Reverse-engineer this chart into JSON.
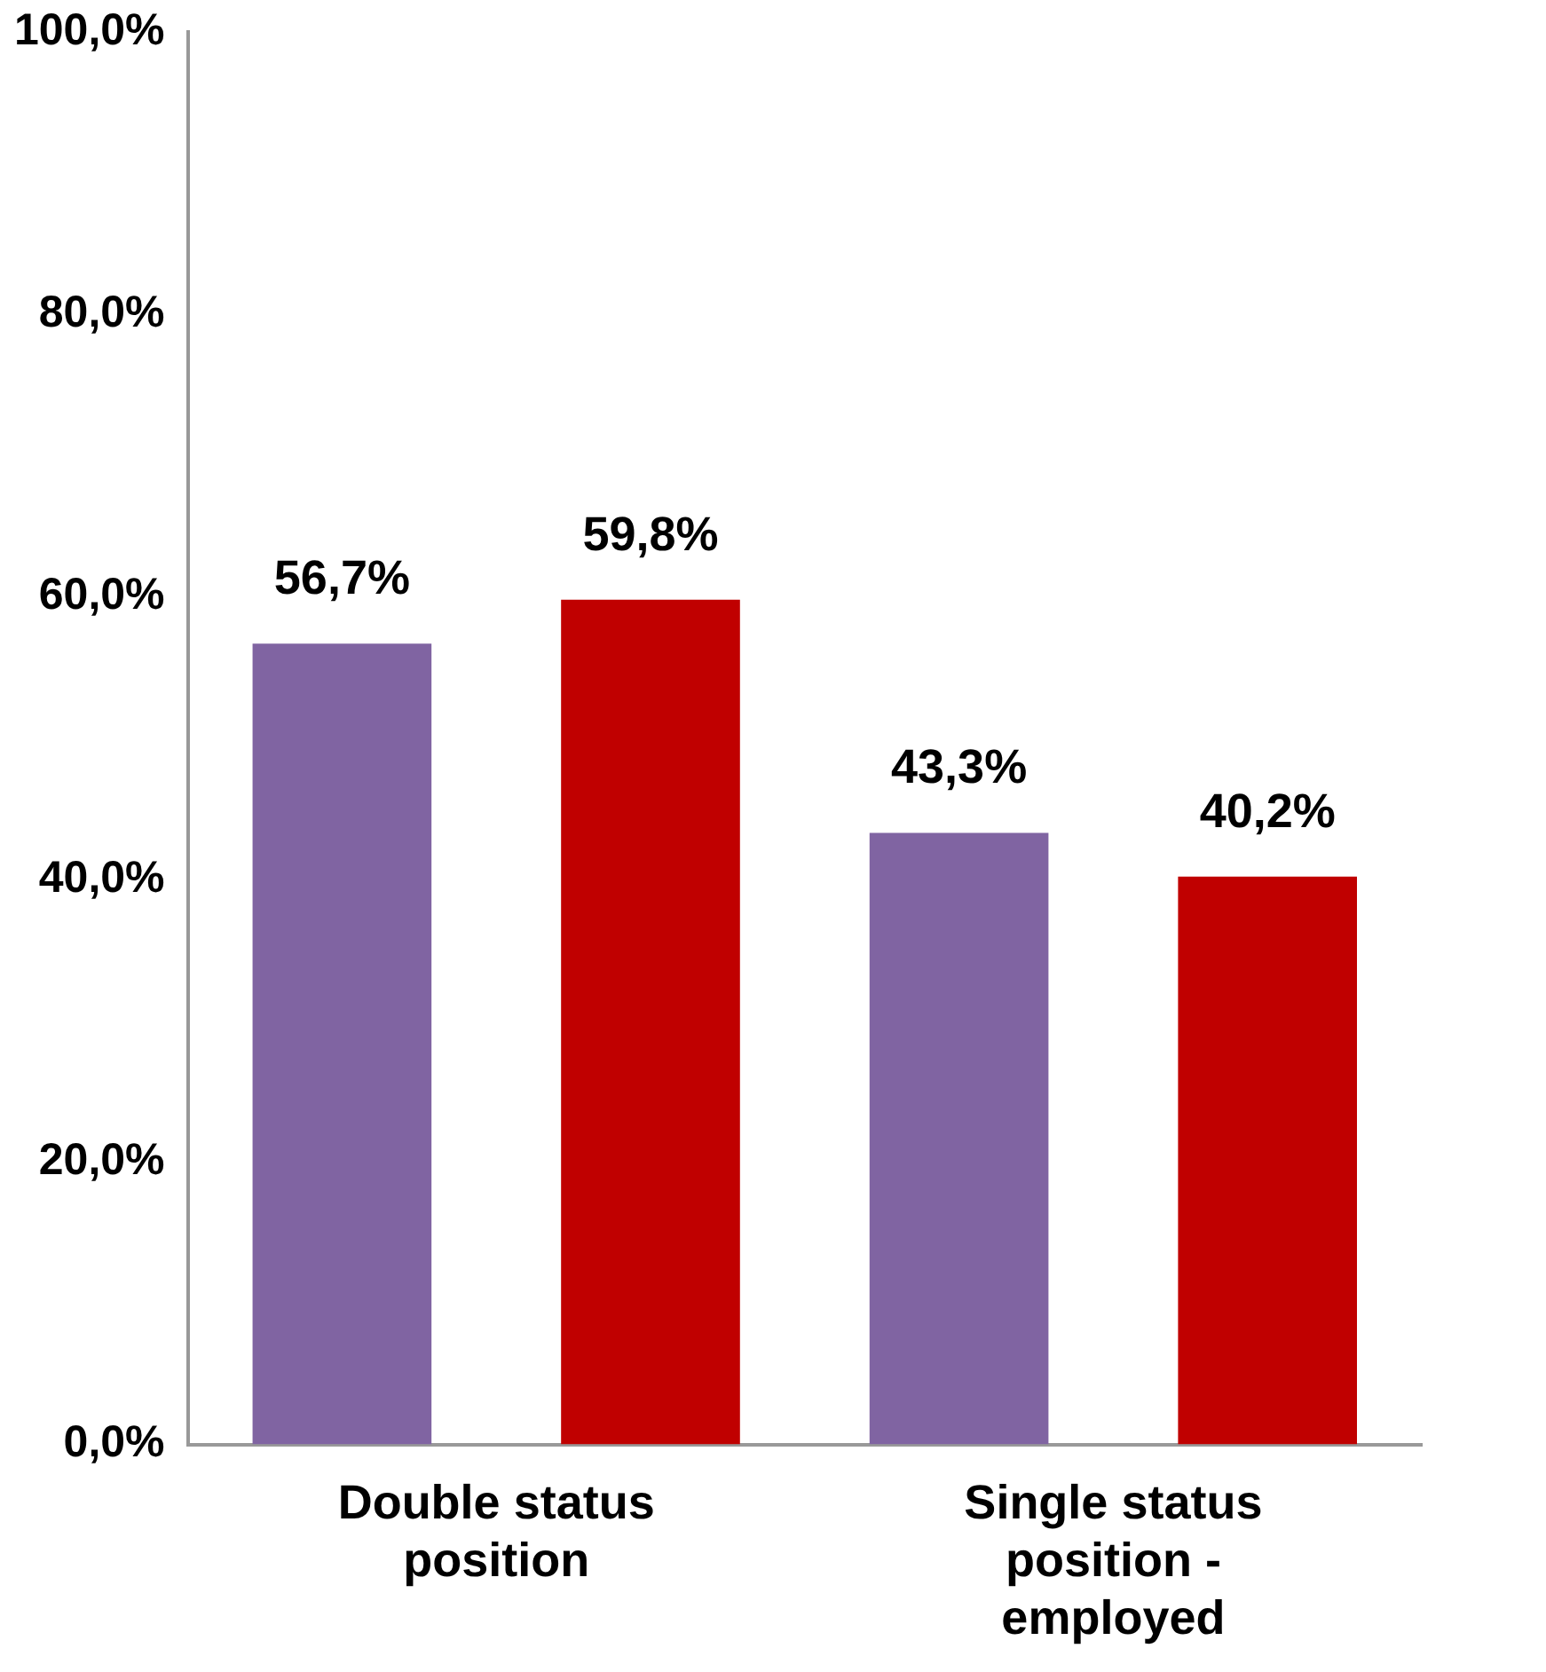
{
  "chart_data": {
    "type": "bar",
    "categories": [
      "Double status position",
      "Single status position - employed"
    ],
    "series": [
      {
        "color": "#8064a2",
        "values": [
          56.7,
          43.3
        ],
        "value_labels": [
          "56,7%",
          "43,3%"
        ]
      },
      {
        "color": "#c00000",
        "values": [
          59.8,
          40.2
        ],
        "value_labels": [
          "59,8%",
          "40,2%"
        ]
      }
    ],
    "ylim": [
      0,
      100
    ],
    "yticks": [
      {
        "value": 0,
        "label": "0,0%"
      },
      {
        "value": 20,
        "label": "20,0%"
      },
      {
        "value": 40,
        "label": "40,0%"
      },
      {
        "value": 60,
        "label": "60,0%"
      },
      {
        "value": 80,
        "label": "80,0%"
      },
      {
        "value": 100,
        "label": "100,0%"
      }
    ],
    "grid": false,
    "legend": false
  }
}
